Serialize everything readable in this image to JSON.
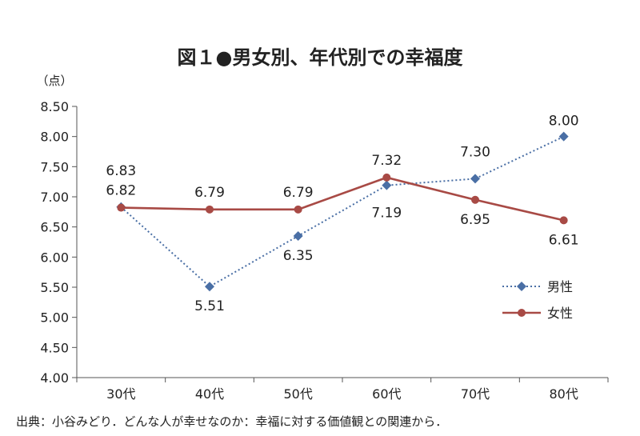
{
  "chart_data": {
    "type": "line",
    "title": "図１●男女別、年代別での幸福度",
    "ylabel": "（点）",
    "xlabel": "",
    "categories": [
      "30代",
      "40代",
      "50代",
      "60代",
      "70代",
      "80代"
    ],
    "ylim": [
      4.0,
      8.5
    ],
    "yticks": [
      "4.00",
      "4.50",
      "5.00",
      "5.50",
      "6.00",
      "6.50",
      "7.00",
      "7.50",
      "8.00",
      "8.50"
    ],
    "series": [
      {
        "name": "男性",
        "values": [
          6.83,
          5.51,
          6.35,
          7.19,
          7.3,
          8.0
        ],
        "labels": [
          "6.83",
          "5.51",
          "6.35",
          "7.19",
          "7.30",
          "8.00"
        ],
        "color": "#4a6fa5",
        "style": "dotted",
        "marker": "diamond"
      },
      {
        "name": "女性",
        "values": [
          6.82,
          6.79,
          6.79,
          7.32,
          6.95,
          6.61
        ],
        "labels": [
          "6.82",
          "6.79",
          "6.79",
          "7.32",
          "6.95",
          "6.61"
        ],
        "color": "#a84a45",
        "style": "solid",
        "marker": "circle"
      }
    ],
    "legend": "right-lower",
    "source": "出典：小谷みどり．どんな人が幸せなのか：幸福に対する価値観との関連から．"
  }
}
